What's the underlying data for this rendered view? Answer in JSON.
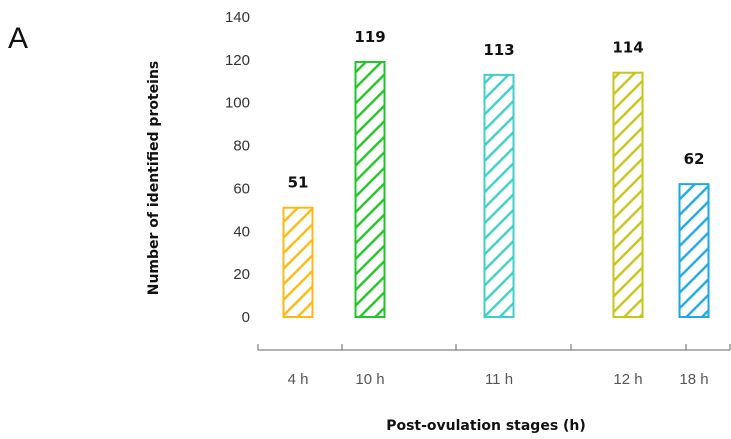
{
  "panel_label": "A",
  "chart_data": {
    "type": "bar",
    "title": "",
    "categories": [
      "4 h",
      "10 h",
      "11 h",
      "12 h",
      "18 h"
    ],
    "values": [
      51,
      119,
      113,
      114,
      62
    ],
    "data_labels": [
      "51",
      "119",
      "113",
      "114",
      "62"
    ],
    "xlabel": "Post-ovulation stages (h)",
    "ylabel": "Number of identified proteins",
    "ylim": [
      0,
      140
    ],
    "yticks": [
      0,
      20,
      40,
      60,
      80,
      100,
      120,
      140
    ],
    "grid": false,
    "legend": "none",
    "bar_pattern": "diagonal-hatch",
    "colors": [
      "#FDB913",
      "#22C428",
      "#3ECFCB",
      "#C9C41A",
      "#1EA8E6"
    ]
  }
}
